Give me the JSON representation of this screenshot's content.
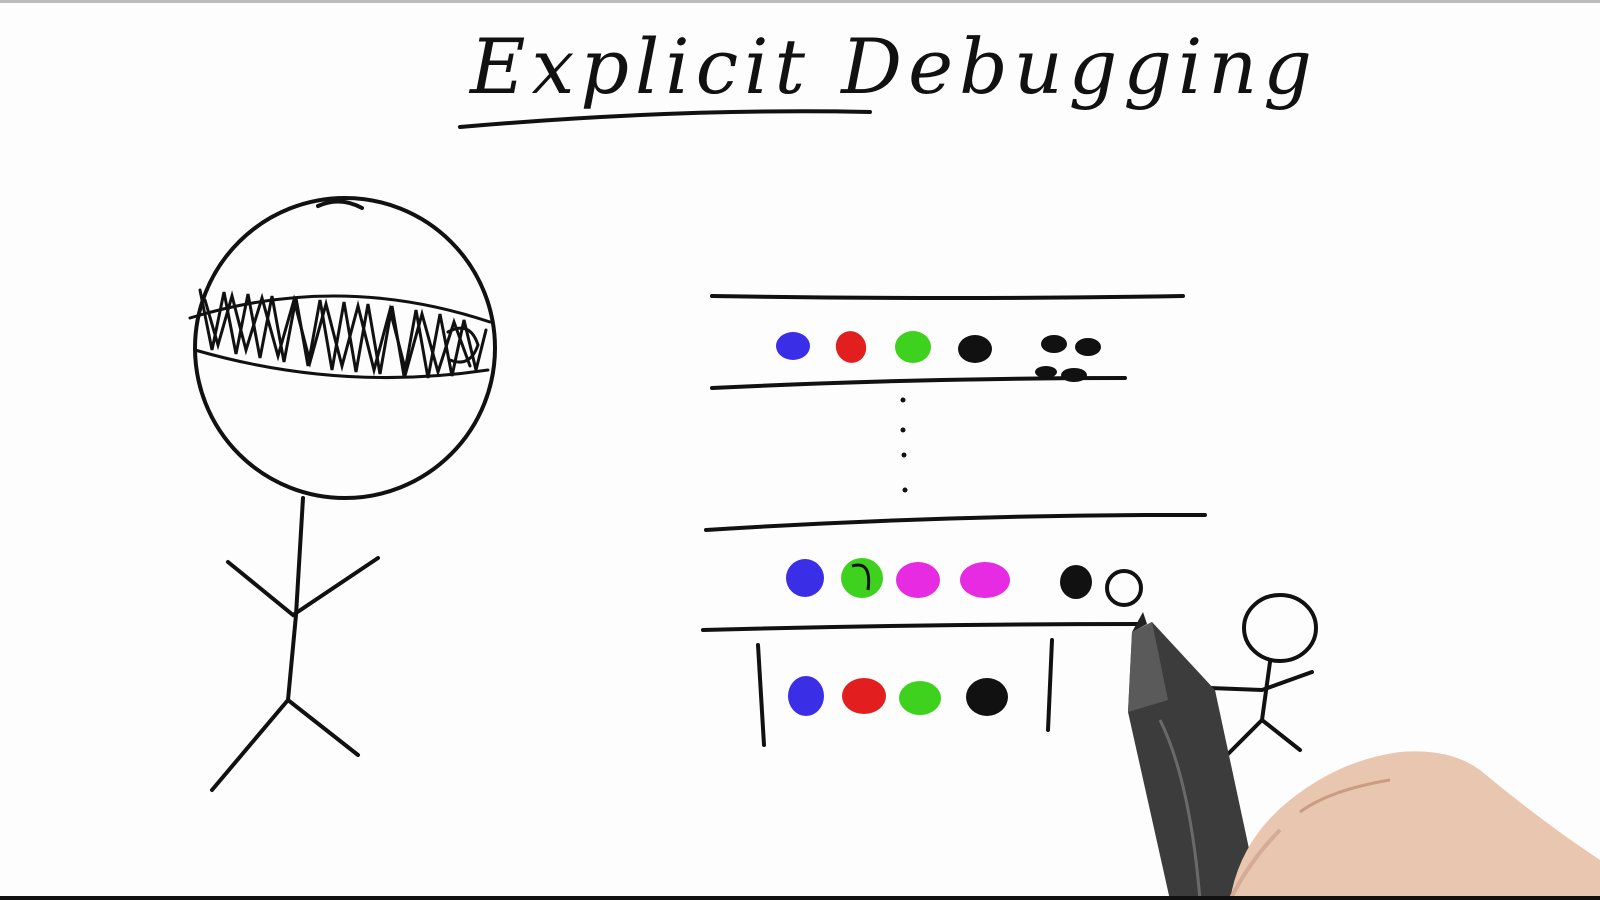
{
  "title": "Explicit Debugging",
  "colors": {
    "ink": "#111111",
    "blue": "#3a2ee6",
    "red": "#e21e1e",
    "green": "#3ed21e",
    "magenta": "#e62be3",
    "background": "#fdfdfd"
  },
  "rows": [
    {
      "name": "top-row",
      "dots": [
        "blue",
        "red",
        "green",
        "black",
        "cluster"
      ]
    },
    {
      "name": "middle-row",
      "dots": [
        "blue",
        "green",
        "magenta",
        "magenta",
        "black",
        "hollow"
      ]
    },
    {
      "name": "bottom-row",
      "dots": [
        "blue",
        "red",
        "green",
        "black"
      ]
    }
  ]
}
